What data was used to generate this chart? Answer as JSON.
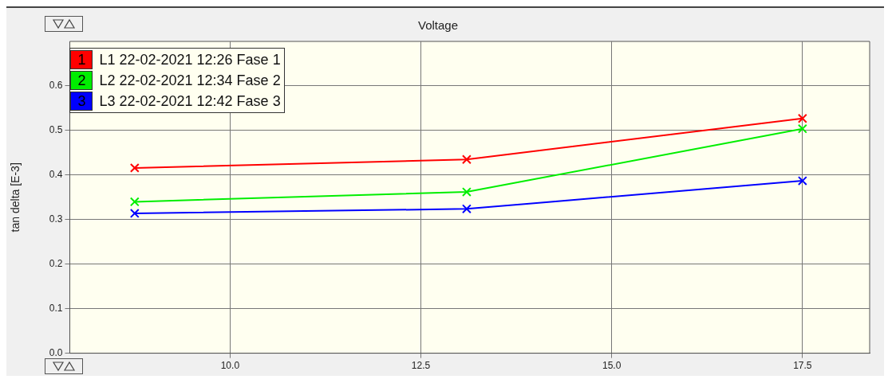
{
  "chart_data": {
    "type": "line",
    "title": "Voltage",
    "ylabel": "tan delta [E-3]",
    "x": [
      8.75,
      13.1,
      17.5
    ],
    "series": [
      {
        "name": "L1 22-02-2021 12:26 Fase 1",
        "color": "#ff0000",
        "values": [
          0.416,
          0.435,
          0.527
        ]
      },
      {
        "name": "L2 22-02-2021 12:34 Fase 2",
        "color": "#00ee00",
        "values": [
          0.34,
          0.362,
          0.504
        ]
      },
      {
        "name": "L3 22-02-2021 12:42 Fase 3",
        "color": "#0000ff",
        "values": [
          0.314,
          0.324,
          0.387
        ]
      }
    ],
    "xlim": [
      7.9,
      18.38
    ],
    "xticks": [
      {
        "value": 10,
        "label": "10.0"
      },
      {
        "value": 12.5,
        "label": "12.5"
      },
      {
        "value": 15,
        "label": "15.0"
      },
      {
        "value": 17.5,
        "label": "17.5"
      }
    ],
    "ylim": [
      0,
      0.7
    ],
    "yticks": [
      {
        "value": 0,
        "label": "0.0"
      },
      0.1,
      0.2,
      0.3,
      0.4,
      0.5,
      0.6
    ],
    "annotations": [
      "1",
      "2",
      "3"
    ],
    "grid": true,
    "legend": "top left",
    "marker": "cross",
    "line_style": "solid"
  }
}
